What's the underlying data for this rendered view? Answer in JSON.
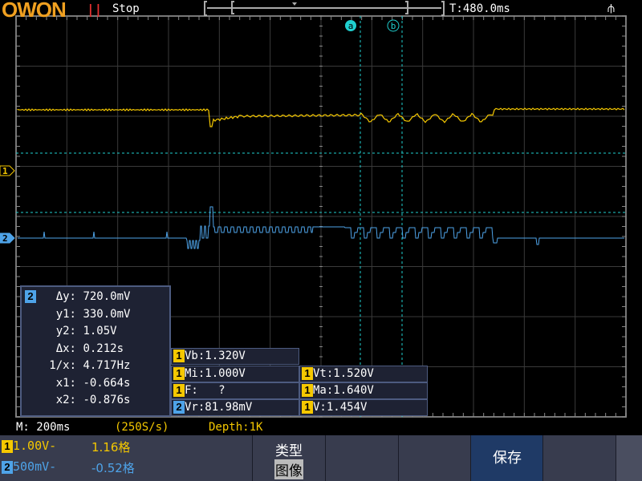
{
  "header": {
    "logo": "OWON",
    "run_icon": "pause-icon",
    "run_symbol": "||",
    "status": "Stop",
    "timebase_position": "T:480.0ms",
    "usb_icon": "usb-icon",
    "usb_symbol": "⫛"
  },
  "colors": {
    "ch1": "#f5c800",
    "ch2": "#4ea3e8",
    "cursor": "#20d0d0",
    "grid": "#5a5a5a",
    "logo": "#f0a020",
    "run": "#e53030"
  },
  "cursors": {
    "a_label": "a",
    "b_label": "b"
  },
  "markers": {
    "ch1": "1",
    "ch2": "2"
  },
  "cursor_panel": {
    "channel": "2",
    "rows": [
      {
        "label": "Δy:",
        "value": "720.0mV"
      },
      {
        "label": "y1:",
        "value": "330.0mV"
      },
      {
        "label": "y2:",
        "value": "1.05V"
      },
      {
        "label": "Δx:",
        "value": "0.212s"
      },
      {
        "label": "1/x:",
        "value": "4.717Hz"
      },
      {
        "label": "x1:",
        "value": "-0.664s"
      },
      {
        "label": "x2:",
        "value": "-0.876s"
      }
    ]
  },
  "measurements": [
    {
      "ch": "1",
      "text": "Vb:1.320V"
    },
    {
      "ch": "1",
      "text": "Mi:1.000V"
    },
    {
      "ch": "1",
      "text": "Vt:1.520V"
    },
    {
      "ch": "1",
      "text": "F:   ?"
    },
    {
      "ch": "1",
      "text": "Ma:1.640V"
    },
    {
      "ch": "2",
      "text": "Vr:81.98mV"
    },
    {
      "ch": "1",
      "text": "V:1.454V"
    }
  ],
  "info": {
    "timebase": "M: 200ms",
    "sample_rate": "(250S/s)",
    "depth": "Depth:1K"
  },
  "channels": [
    {
      "num": "1",
      "scale": "1.00V-",
      "offset": "1.16格"
    },
    {
      "num": "2",
      "scale": "500mV-",
      "offset": "-0.52格"
    }
  ],
  "menu": {
    "type_label": "类型",
    "type_value": "图像",
    "save_label": "保存"
  }
}
